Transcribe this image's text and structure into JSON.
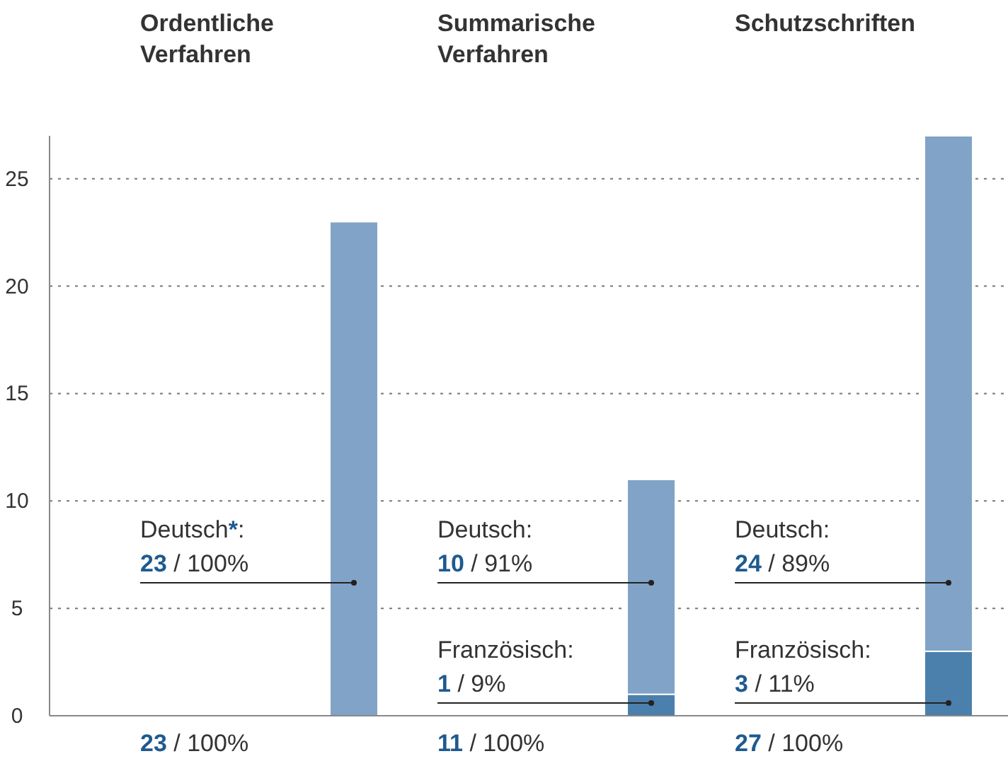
{
  "chart_data": {
    "type": "bar",
    "stacked": true,
    "categories": [
      "Ordentliche Verfahren",
      "Summarische Verfahren",
      "Schutzschriften"
    ],
    "series": [
      {
        "color": "#4b80ad",
        "values": [
          0,
          1,
          3
        ],
        "value_labels": [
          null,
          "Französisch:\n1 / 9%",
          "Französisch:\n3 / 11%"
        ]
      },
      {
        "color": "#81a3c7",
        "values": [
          23,
          10,
          24
        ],
        "value_labels": [
          "Deutsch*:\n23 / 100%",
          "Deutsch:\n10 / 91%",
          "Deutsch:\n24 / 89%"
        ]
      }
    ],
    "annotations": [
      "23 / 100%",
      "11 / 100%",
      "27 / 100%"
    ],
    "ylim": [
      0,
      27
    ],
    "yticks": [
      0,
      5,
      10,
      15,
      20,
      25
    ],
    "grid": "y"
  }
}
